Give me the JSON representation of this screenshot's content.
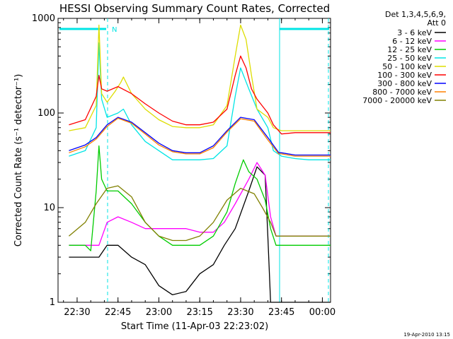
{
  "chart_data": {
    "type": "line",
    "title": "HESSI Observing Summary Count Rates, Corrected",
    "xlabel": "Start Time (11-Apr-03 22:23:02)",
    "ylabel": "Corrected Count Rate (s⁻¹ detector⁻¹)",
    "y_scale": "log",
    "xlim": [
      "22:23",
      "00:03"
    ],
    "ylim": [
      1,
      1000
    ],
    "x_ticks": [
      "22:30",
      "22:45",
      "23:00",
      "23:15",
      "23:30",
      "23:45",
      "00:00"
    ],
    "y_ticks": [
      "1",
      "10",
      "100",
      "1000"
    ],
    "legend_header": [
      "Det 1,3,4,5,6,9,",
      "Att 0"
    ],
    "legend_position": "right",
    "attenuator_marker": "N",
    "footer_date": "19-Apr-2010 13:15",
    "series": [
      {
        "name": "3 - 6 keV",
        "color": "#000000",
        "x": [
          "22:27",
          "22:38",
          "22:41",
          "22:45",
          "22:50",
          "22:55",
          "23:00",
          "23:05",
          "23:10",
          "23:15",
          "23:20",
          "23:24",
          "23:28",
          "23:33",
          "23:36",
          "23:39",
          "23:40",
          "23:41",
          "00:03"
        ],
        "values": [
          3,
          3,
          4,
          4,
          3,
          2.5,
          1.5,
          1.2,
          1.3,
          2,
          2.5,
          4,
          6,
          15,
          27,
          22,
          5,
          1,
          1
        ]
      },
      {
        "name": "6 - 12 keV",
        "color": "#ff00ff",
        "x": [
          "22:27",
          "22:38",
          "22:41",
          "22:45",
          "22:50",
          "22:55",
          "23:00",
          "23:05",
          "23:10",
          "23:15",
          "23:20",
          "23:24",
          "23:28",
          "23:33",
          "23:36",
          "23:39",
          "23:41",
          "23:43",
          "00:03"
        ],
        "values": [
          4,
          4,
          7,
          8,
          7,
          6,
          6,
          6,
          6,
          5.5,
          5.5,
          7,
          11,
          20,
          30,
          22,
          8,
          5,
          5
        ]
      },
      {
        "name": "12 - 25 keV",
        "color": "#00cc00",
        "x": [
          "22:27",
          "22:33",
          "22:35",
          "22:37",
          "22:38",
          "22:39",
          "22:41",
          "22:45",
          "22:50",
          "22:55",
          "23:00",
          "23:05",
          "23:10",
          "23:15",
          "23:20",
          "23:25",
          "23:28",
          "23:31",
          "23:33",
          "23:36",
          "23:39",
          "23:41",
          "23:43",
          "00:03"
        ],
        "values": [
          4,
          4,
          3.5,
          15,
          45,
          20,
          15,
          15,
          11,
          7,
          5,
          4,
          4,
          4,
          5,
          9,
          18,
          32,
          24,
          20,
          12,
          6,
          4,
          4
        ]
      },
      {
        "name": "25 - 50 keV",
        "color": "#00e5e5",
        "x": [
          "22:27",
          "22:33",
          "22:37",
          "22:38",
          "22:39",
          "22:41",
          "22:45",
          "22:47",
          "22:50",
          "22:55",
          "23:00",
          "23:05",
          "23:10",
          "23:15",
          "23:20",
          "23:25",
          "23:28",
          "23:30",
          "23:33",
          "23:36",
          "23:40",
          "23:42",
          "23:45",
          "23:50",
          "23:55",
          "00:03"
        ],
        "values": [
          35,
          40,
          70,
          550,
          140,
          90,
          100,
          110,
          75,
          50,
          40,
          32,
          32,
          32,
          33,
          45,
          150,
          300,
          180,
          110,
          70,
          40,
          35,
          33,
          32,
          32
        ]
      },
      {
        "name": "50 - 100 keV",
        "color": "#dddd00",
        "x": [
          "22:27",
          "22:33",
          "22:37",
          "22:38",
          "22:39",
          "22:41",
          "22:44",
          "22:46",
          "22:47",
          "22:50",
          "22:55",
          "23:00",
          "23:05",
          "23:10",
          "23:15",
          "23:20",
          "23:25",
          "23:28",
          "23:30",
          "23:32",
          "23:34",
          "23:36",
          "23:40",
          "23:42",
          "23:45",
          "23:50",
          "23:55",
          "00:03"
        ],
        "values": [
          65,
          70,
          120,
          850,
          160,
          130,
          170,
          210,
          240,
          160,
          110,
          85,
          72,
          70,
          70,
          75,
          120,
          400,
          850,
          600,
          250,
          110,
          90,
          70,
          65,
          65,
          65,
          65
        ]
      },
      {
        "name": "100 - 300 keV",
        "color": "#ff0000",
        "x": [
          "22:27",
          "22:33",
          "22:37",
          "22:38",
          "22:39",
          "22:41",
          "22:45",
          "22:50",
          "22:55",
          "23:00",
          "23:05",
          "23:10",
          "23:15",
          "23:20",
          "23:25",
          "23:28",
          "23:30",
          "23:32",
          "23:34",
          "23:36",
          "23:40",
          "23:42",
          "23:45",
          "23:50",
          "23:55",
          "00:03"
        ],
        "values": [
          75,
          85,
          150,
          250,
          180,
          170,
          190,
          160,
          125,
          100,
          82,
          75,
          75,
          80,
          110,
          250,
          400,
          300,
          180,
          140,
          100,
          75,
          60,
          62,
          62,
          62
        ]
      },
      {
        "name": "300 - 800 keV",
        "color": "#0000ff",
        "x": [
          "22:27",
          "22:33",
          "22:37",
          "22:41",
          "22:45",
          "22:50",
          "22:55",
          "23:00",
          "23:05",
          "23:10",
          "23:15",
          "23:20",
          "23:25",
          "23:30",
          "23:35",
          "23:40",
          "23:44",
          "23:45",
          "23:50",
          "23:55",
          "00:03"
        ],
        "values": [
          40,
          46,
          55,
          75,
          90,
          80,
          62,
          48,
          40,
          38,
          38,
          45,
          65,
          90,
          85,
          55,
          38,
          38,
          36,
          36,
          36
        ]
      },
      {
        "name": "800 - 7000 keV",
        "color": "#ff8000",
        "x": [
          "22:27",
          "22:33",
          "22:37",
          "22:41",
          "22:45",
          "22:50",
          "22:55",
          "23:00",
          "23:05",
          "23:10",
          "23:15",
          "23:20",
          "23:25",
          "23:30",
          "23:35",
          "23:40",
          "23:44",
          "23:45",
          "23:50",
          "23:55",
          "00:03"
        ],
        "values": [
          38,
          44,
          53,
          72,
          88,
          78,
          60,
          46,
          39,
          37,
          37,
          43,
          63,
          87,
          82,
          52,
          37,
          37,
          35,
          35,
          35
        ]
      },
      {
        "name": "7000 - 20000 keV",
        "color": "#808000",
        "x": [
          "22:27",
          "22:33",
          "22:37",
          "22:41",
          "22:45",
          "22:50",
          "22:55",
          "23:00",
          "23:05",
          "23:10",
          "23:15",
          "23:20",
          "23:25",
          "23:30",
          "23:35",
          "23:38",
          "23:41",
          "23:43",
          "00:03"
        ],
        "values": [
          5,
          7,
          11,
          16,
          17,
          13,
          7,
          5,
          4.5,
          4.5,
          5,
          7,
          12,
          16,
          14,
          10,
          7,
          5,
          5
        ]
      }
    ]
  }
}
